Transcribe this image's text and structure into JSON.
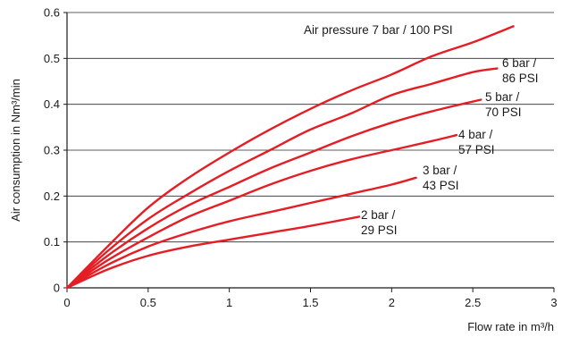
{
  "chart_data": {
    "type": "line",
    "title": "",
    "xlabel": "Flow rate in m³/h",
    "ylabel": "Air consumption in Nm³/min",
    "xlim": [
      0,
      3
    ],
    "ylim": [
      0,
      0.6
    ],
    "xticks": [
      "0",
      "0.5",
      "1",
      "1.5",
      "2",
      "2.5",
      "3"
    ],
    "yticks": [
      "0",
      "0.1",
      "0.2",
      "0.3",
      "0.4",
      "0.5",
      "0.6"
    ],
    "grid": "horizontal",
    "line_color": "#e31e24",
    "series": [
      {
        "label_lines": [
          "Air pressure 7 bar / 100 PSI"
        ],
        "x": [
          0,
          0.25,
          0.5,
          0.75,
          1.0,
          1.25,
          1.5,
          1.75,
          2.0,
          2.25,
          2.5,
          2.75
        ],
        "y": [
          0,
          0.09,
          0.175,
          0.24,
          0.295,
          0.345,
          0.39,
          0.43,
          0.465,
          0.505,
          0.535,
          0.57
        ]
      },
      {
        "label_lines": [
          "6 bar /",
          "86 PSI"
        ],
        "x": [
          0,
          0.25,
          0.5,
          0.75,
          1.0,
          1.25,
          1.5,
          1.75,
          2.0,
          2.25,
          2.5,
          2.65
        ],
        "y": [
          0,
          0.08,
          0.15,
          0.205,
          0.255,
          0.3,
          0.345,
          0.38,
          0.42,
          0.445,
          0.47,
          0.478
        ]
      },
      {
        "label_lines": [
          "5 bar /",
          "70 PSI"
        ],
        "x": [
          0,
          0.25,
          0.5,
          0.75,
          1.0,
          1.25,
          1.5,
          1.75,
          2.0,
          2.25,
          2.55
        ],
        "y": [
          0,
          0.07,
          0.13,
          0.18,
          0.22,
          0.26,
          0.295,
          0.33,
          0.36,
          0.385,
          0.41
        ]
      },
      {
        "label_lines": [
          "4 bar /",
          "57 PSI"
        ],
        "x": [
          0,
          0.25,
          0.5,
          0.75,
          1.0,
          1.25,
          1.5,
          1.75,
          2.0,
          2.25,
          2.4
        ],
        "y": [
          0,
          0.06,
          0.11,
          0.155,
          0.19,
          0.225,
          0.255,
          0.28,
          0.3,
          0.32,
          0.333
        ]
      },
      {
        "label_lines": [
          "3 bar /",
          "43 PSI"
        ],
        "x": [
          0,
          0.25,
          0.5,
          0.75,
          1.0,
          1.25,
          1.5,
          1.75,
          2.0,
          2.15
        ],
        "y": [
          0,
          0.05,
          0.09,
          0.12,
          0.145,
          0.165,
          0.185,
          0.205,
          0.225,
          0.24
        ]
      },
      {
        "label_lines": [
          "2 bar /",
          "29 PSI"
        ],
        "x": [
          0,
          0.25,
          0.5,
          0.75,
          1.0,
          1.25,
          1.5,
          1.8
        ],
        "y": [
          0,
          0.04,
          0.07,
          0.09,
          0.105,
          0.12,
          0.135,
          0.155
        ]
      }
    ]
  }
}
